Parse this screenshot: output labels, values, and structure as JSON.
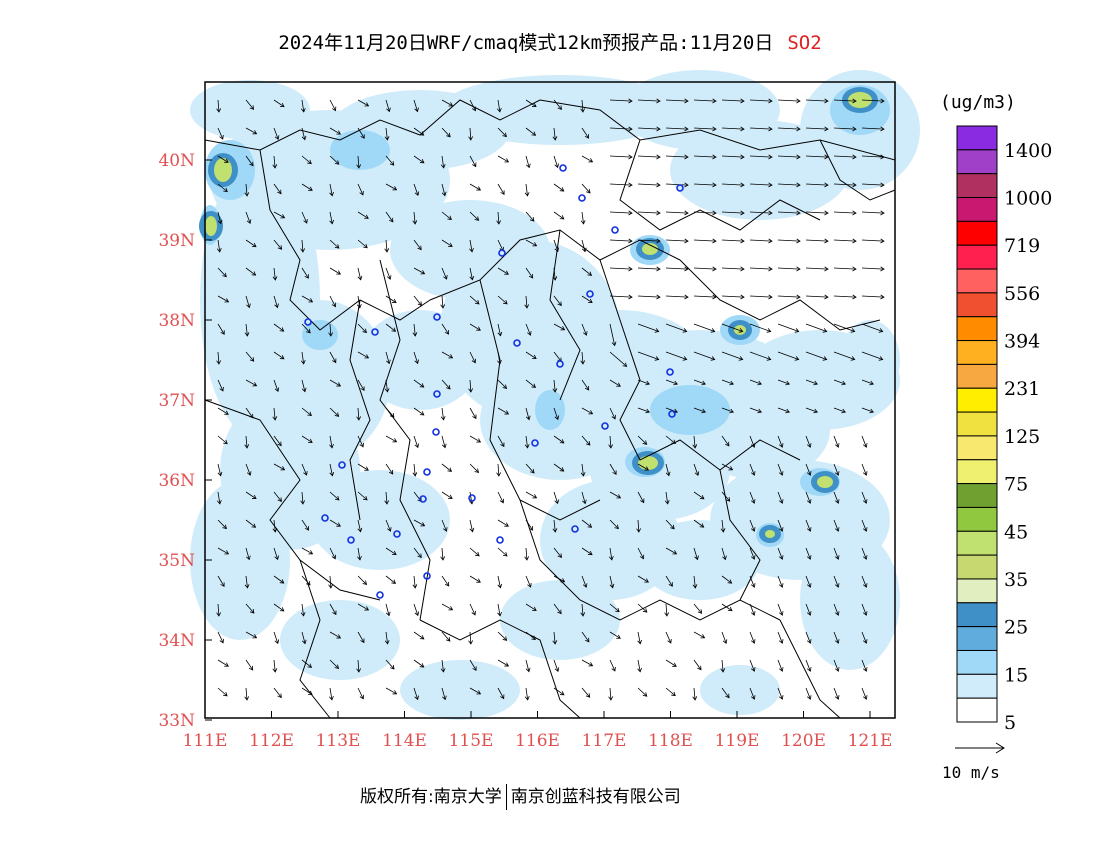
{
  "title": {
    "main": "2024年11月20日WRF/cmaq模式12km预报产品:11月20日",
    "species": "SO2"
  },
  "map": {
    "lat_ticks": [
      "40N",
      "39N",
      "38N",
      "37N",
      "36N",
      "35N",
      "34N",
      "33N"
    ],
    "lon_ticks": [
      "111E",
      "112E",
      "113E",
      "114E",
      "115E",
      "116E",
      "117E",
      "118E",
      "119E",
      "120E",
      "121E"
    ]
  },
  "legend": {
    "unit": "(ug/m3)",
    "labels": [
      "1400",
      "1000",
      "719",
      "556",
      "394",
      "231",
      "125",
      "75",
      "45",
      "35",
      "25",
      "15",
      "5"
    ],
    "colors": [
      "#8a2be2",
      "#a040c8",
      "#b03060",
      "#c81870",
      "#ff0000",
      "#ff2050",
      "#ff6060",
      "#f05030",
      "#ff8c00",
      "#ffb020",
      "#f8a840",
      "#ffee00",
      "#f0e040",
      "#f8e870",
      "#f0f070",
      "#70a030",
      "#90c840",
      "#c0e070",
      "#c8d870",
      "#e0eec0",
      "#4090c8",
      "#60acdc",
      "#a0d8f8",
      "#d0ecfa",
      "#ffffff"
    ],
    "wind_ref": "10 m/s"
  },
  "footer": {
    "left": "版权所有:南京大学",
    "right": "南京创蓝科技有限公司"
  }
}
